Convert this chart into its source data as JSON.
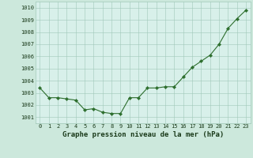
{
  "x": [
    0,
    1,
    2,
    3,
    4,
    5,
    6,
    7,
    8,
    9,
    10,
    11,
    12,
    13,
    14,
    15,
    16,
    17,
    18,
    19,
    20,
    21,
    22,
    23
  ],
  "y": [
    1003.4,
    1002.6,
    1002.6,
    1002.5,
    1002.4,
    1001.6,
    1001.7,
    1001.4,
    1001.3,
    1001.3,
    1002.6,
    1002.6,
    1003.4,
    1003.4,
    1003.5,
    1003.5,
    1004.3,
    1005.1,
    1005.6,
    1006.1,
    1007.0,
    1008.3,
    1009.1,
    1009.8
  ],
  "line_color": "#2d6e2d",
  "marker_color": "#2d6e2d",
  "bg_color": "#cce8dc",
  "plot_bg_color": "#d8f0ea",
  "grid_color": "#a0c8b8",
  "ylabel_ticks": [
    1001,
    1002,
    1003,
    1004,
    1005,
    1006,
    1007,
    1008,
    1009,
    1010
  ],
  "ylim": [
    1000.5,
    1010.5
  ],
  "xlim": [
    -0.5,
    23.5
  ],
  "xlabel": "Graphe pression niveau de la mer (hPa)",
  "font_color": "#1a3a1a",
  "xlabel_fontsize": 6.5,
  "tick_fontsize": 5.0
}
